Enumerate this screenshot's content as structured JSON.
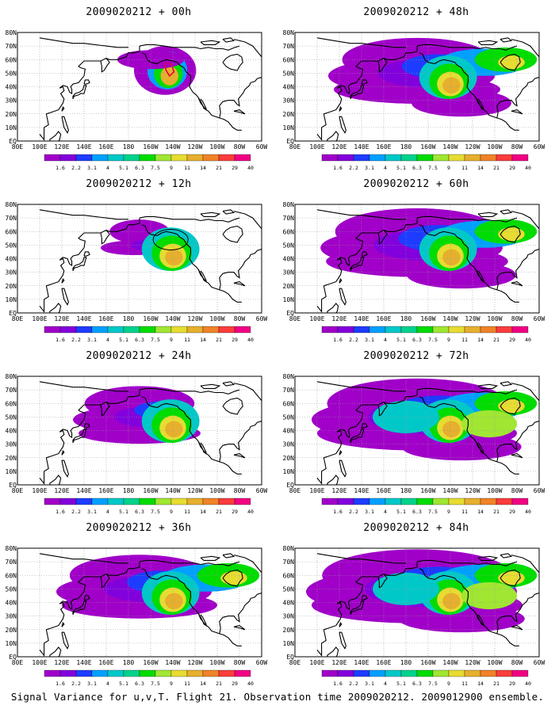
{
  "colors": {
    "scale": [
      "#a000c8",
      "#8200dc",
      "#1e3cff",
      "#00a0ff",
      "#00c8c8",
      "#00d28c",
      "#00dc00",
      "#a0e632",
      "#e6dc32",
      "#e6af2d",
      "#f08228",
      "#fa3c3c",
      "#f00082"
    ],
    "coast": "#000000",
    "grid": "#9a9a9a",
    "flight_track": "#e8003c"
  },
  "map": {
    "lat_labels": [
      "80N",
      "70N",
      "60N",
      "50N",
      "40N",
      "30N",
      "20N",
      "10N",
      "EQ"
    ],
    "lon_labels": [
      "80E",
      "100E",
      "120E",
      "140E",
      "160E",
      "180",
      "160W",
      "140W",
      "120W",
      "100W",
      "80W",
      "60W"
    ]
  },
  "colorbar": {
    "labels": [
      "1.6",
      "2.2",
      "3.1",
      "4",
      "5.1",
      "6.3",
      "7.5",
      "9",
      "11",
      "14",
      "21",
      "29",
      "40"
    ]
  },
  "panels": [
    {
      "title": "2009020212 + 00h",
      "coverage": 0.12,
      "peak": 0.9
    },
    {
      "title": "2009020212 + 12h",
      "coverage": 0.3,
      "peak": 0.85
    },
    {
      "title": "2009020212 + 24h",
      "coverage": 0.55,
      "peak": 0.85
    },
    {
      "title": "2009020212 + 36h",
      "coverage": 0.7,
      "peak": 0.8
    },
    {
      "title": "2009020212 + 48h",
      "coverage": 0.75,
      "peak": 0.8
    },
    {
      "title": "2009020212 + 60h",
      "coverage": 0.82,
      "peak": 0.8
    },
    {
      "title": "2009020212 + 72h",
      "coverage": 0.9,
      "peak": 0.8
    },
    {
      "title": "2009020212 + 84h",
      "coverage": 0.95,
      "peak": 0.75
    }
  ],
  "caption": "Signal Variance for u,v,T. Flight 21. Observation time 2009020212. 2009012900 ensemble."
}
